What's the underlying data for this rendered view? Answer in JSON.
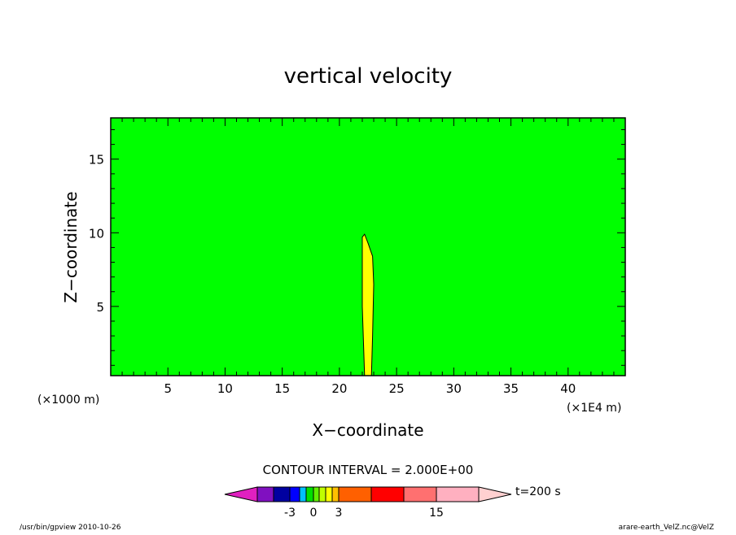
{
  "chart_data": {
    "type": "contour",
    "title": "vertical velocity",
    "x_label": "X−coordinate",
    "y_label": "Z−coordinate",
    "x_unit": "(×1E4 m)",
    "y_unit": "(×1000 m)",
    "xlim": [
      0,
      45
    ],
    "ylim": [
      0.3,
      17.8
    ],
    "xticks": [
      5,
      10,
      15,
      20,
      25,
      30,
      35,
      40
    ],
    "yticks": [
      5,
      10,
      15
    ],
    "xminorticks": [
      1,
      2,
      3,
      4,
      6,
      7,
      8,
      9,
      11,
      12,
      13,
      14,
      16,
      17,
      18,
      19,
      21,
      22,
      23,
      24,
      26,
      27,
      28,
      29,
      31,
      32,
      33,
      34,
      36,
      37,
      38,
      39,
      41,
      42,
      43,
      44
    ],
    "yminorticks": [
      1,
      2,
      3,
      4,
      6,
      7,
      8,
      9,
      11,
      12,
      13,
      14,
      16,
      17
    ],
    "background_color": "#00ff00",
    "regions": [
      {
        "color": "#ffff00",
        "x": [
          22.2,
          22.0,
          22.0,
          22.2,
          22.5,
          22.9,
          23.0,
          22.9,
          22.8
        ],
        "y": [
          0.3,
          5.0,
          9.7,
          9.9,
          9.3,
          8.4,
          6.5,
          3.0,
          0.3
        ]
      }
    ],
    "contour_interval": "CONTOUR INTERVAL = 2.000E+00",
    "time_label": "t=200 s",
    "colorbar_colors": [
      "#e020c0",
      "#8010c0",
      "#0000a0",
      "#0000ff",
      "#00c0ff",
      "#00e000",
      "#60f000",
      "#c0ff00",
      "#ffff00",
      "#ffc000",
      "#ff6000",
      "#ff0000",
      "#ff7070",
      "#ffb0c0",
      "#ffd0d0"
    ],
    "colorbar_labels": [
      -3,
      0,
      3,
      15
    ],
    "footer_left": "/usr/bin/gpview   2010-10-26",
    "footer_right": "arare-earth_VelZ.nc@VelZ"
  }
}
